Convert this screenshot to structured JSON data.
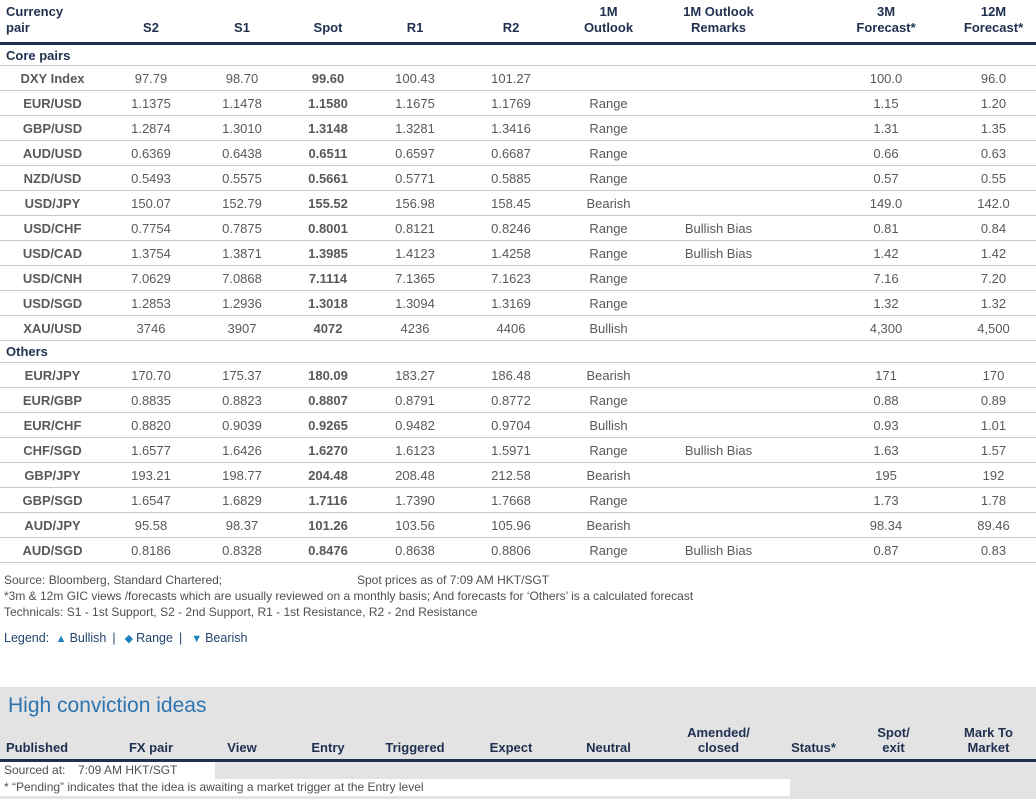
{
  "fx_table": {
    "headers": [
      "Currency\npair",
      "S2",
      "S1",
      "Spot",
      "R1",
      "R2",
      "1M\nOutlook",
      "1M Outlook\nRemarks",
      "3M\nForecast*",
      "12M\nForecast*"
    ],
    "sections": [
      {
        "label": "Core pairs",
        "rows": [
          {
            "pair": "DXY Index",
            "s2": "97.79",
            "s1": "98.70",
            "spot": "99.60",
            "r1": "100.43",
            "r2": "101.27",
            "outlook": "",
            "remarks": "",
            "f3m": "100.0",
            "f12m": "96.0"
          },
          {
            "pair": "EUR/USD",
            "s2": "1.1375",
            "s1": "1.1478",
            "spot": "1.1580",
            "r1": "1.1675",
            "r2": "1.1769",
            "outlook": "Range",
            "remarks": "",
            "f3m": "1.15",
            "f12m": "1.20"
          },
          {
            "pair": "GBP/USD",
            "s2": "1.2874",
            "s1": "1.3010",
            "spot": "1.3148",
            "r1": "1.3281",
            "r2": "1.3416",
            "outlook": "Range",
            "remarks": "",
            "f3m": "1.31",
            "f12m": "1.35"
          },
          {
            "pair": "AUD/USD",
            "s2": "0.6369",
            "s1": "0.6438",
            "spot": "0.6511",
            "r1": "0.6597",
            "r2": "0.6687",
            "outlook": "Range",
            "remarks": "",
            "f3m": "0.66",
            "f12m": "0.63"
          },
          {
            "pair": "NZD/USD",
            "s2": "0.5493",
            "s1": "0.5575",
            "spot": "0.5661",
            "r1": "0.5771",
            "r2": "0.5885",
            "outlook": "Range",
            "remarks": "",
            "f3m": "0.57",
            "f12m": "0.55"
          },
          {
            "pair": "USD/JPY",
            "s2": "150.07",
            "s1": "152.79",
            "spot": "155.52",
            "r1": "156.98",
            "r2": "158.45",
            "outlook": "Bearish",
            "remarks": "",
            "f3m": "149.0",
            "f12m": "142.0"
          },
          {
            "pair": "USD/CHF",
            "s2": "0.7754",
            "s1": "0.7875",
            "spot": "0.8001",
            "r1": "0.8121",
            "r2": "0.8246",
            "outlook": "Range",
            "remarks": "Bullish Bias",
            "f3m": "0.81",
            "f12m": "0.84"
          },
          {
            "pair": "USD/CAD",
            "s2": "1.3754",
            "s1": "1.3871",
            "spot": "1.3985",
            "r1": "1.4123",
            "r2": "1.4258",
            "outlook": "Range",
            "remarks": "Bullish Bias",
            "f3m": "1.42",
            "f12m": "1.42"
          },
          {
            "pair": "USD/CNH",
            "s2": "7.0629",
            "s1": "7.0868",
            "spot": "7.1114",
            "r1": "7.1365",
            "r2": "7.1623",
            "outlook": "Range",
            "remarks": "",
            "f3m": "7.16",
            "f12m": "7.20"
          },
          {
            "pair": "USD/SGD",
            "s2": "1.2853",
            "s1": "1.2936",
            "spot": "1.3018",
            "r1": "1.3094",
            "r2": "1.3169",
            "outlook": "Range",
            "remarks": "",
            "f3m": "1.32",
            "f12m": "1.32"
          },
          {
            "pair": "XAU/USD",
            "s2": "3746",
            "s1": "3907",
            "spot": "4072",
            "r1": "4236",
            "r2": "4406",
            "outlook": "Bullish",
            "remarks": "",
            "f3m": "4,300",
            "f12m": "4,500"
          }
        ]
      },
      {
        "label": "Others",
        "rows": [
          {
            "pair": "EUR/JPY",
            "s2": "170.70",
            "s1": "175.37",
            "spot": "180.09",
            "r1": "183.27",
            "r2": "186.48",
            "outlook": "Bearish",
            "remarks": "",
            "f3m": "171",
            "f12m": "170"
          },
          {
            "pair": "EUR/GBP",
            "s2": "0.8835",
            "s1": "0.8823",
            "spot": "0.8807",
            "r1": "0.8791",
            "r2": "0.8772",
            "outlook": "Range",
            "remarks": "",
            "f3m": "0.88",
            "f12m": "0.89"
          },
          {
            "pair": "EUR/CHF",
            "s2": "0.8820",
            "s1": "0.9039",
            "spot": "0.9265",
            "r1": "0.9482",
            "r2": "0.9704",
            "outlook": "Bullish",
            "remarks": "",
            "f3m": "0.93",
            "f12m": "1.01"
          },
          {
            "pair": "CHF/SGD",
            "s2": "1.6577",
            "s1": "1.6426",
            "spot": "1.6270",
            "r1": "1.6123",
            "r2": "1.5971",
            "outlook": "Range",
            "remarks": "Bullish Bias",
            "f3m": "1.63",
            "f12m": "1.57"
          },
          {
            "pair": "GBP/JPY",
            "s2": "193.21",
            "s1": "198.77",
            "spot": "204.48",
            "r1": "208.48",
            "r2": "212.58",
            "outlook": "Bearish",
            "remarks": "",
            "f3m": "195",
            "f12m": "192"
          },
          {
            "pair": "GBP/SGD",
            "s2": "1.6547",
            "s1": "1.6829",
            "spot": "1.7116",
            "r1": "1.7390",
            "r2": "1.7668",
            "outlook": "Range",
            "remarks": "",
            "f3m": "1.73",
            "f12m": "1.78"
          },
          {
            "pair": "AUD/JPY",
            "s2": "95.58",
            "s1": "98.37",
            "spot": "101.26",
            "r1": "103.56",
            "r2": "105.96",
            "outlook": "Bearish",
            "remarks": "",
            "f3m": "98.34",
            "f12m": "89.46"
          },
          {
            "pair": "AUD/SGD",
            "s2": "0.8186",
            "s1": "0.8328",
            "spot": "0.8476",
            "r1": "0.8638",
            "r2": "0.8806",
            "outlook": "Range",
            "remarks": "Bullish Bias",
            "f3m": "0.87",
            "f12m": "0.83"
          }
        ]
      }
    ]
  },
  "footnotes": {
    "source": "Source: Bloomberg, Standard Chartered;",
    "spot_asof": "Spot prices as of 7:09 AM HKT/SGT",
    "gic_note": "*3m & 12m GIC views /forecasts which are usually reviewed on a monthly basis; And forecasts for ‘Others’ is a calculated forecast",
    "technicals": "Technicals: S1 - 1st Support, S2 - 2nd Support, R1 - 1st Resistance, R2 - 2nd Resistance"
  },
  "legend": {
    "label": "Legend:",
    "items": [
      {
        "icon": "▲",
        "label": "Bullish"
      },
      {
        "icon": "◆",
        "label": "Range"
      },
      {
        "icon": "▼",
        "label": "Bearish"
      }
    ],
    "separator": "|"
  },
  "hci": {
    "title": "High conviction ideas",
    "headers": [
      "Published",
      "FX pair",
      "View",
      "Entry",
      "Triggered",
      "Expect",
      "Neutral",
      "Amended/\nclosed",
      "Status*",
      "Spot/\nexit",
      "Mark To\nMarket"
    ],
    "sourced_at_label": "Sourced at:",
    "sourced_at_value": "7:09 AM HKT/SGT",
    "pending_note": "* “Pending” indicates that the idea is awaiting a market trigger at the Entry level"
  },
  "colors": {
    "navy_header": "#1f3050",
    "outlook_range": "#f7a800",
    "outlook_bullish": "#00b2bd",
    "outlook_bearish": "#e60000",
    "legend_icon_blue": "#1f80c0",
    "hci_title_blue": "#2e75b0",
    "hci_band_gray": "#e3e3e3",
    "data_text_gray": "#595959"
  }
}
